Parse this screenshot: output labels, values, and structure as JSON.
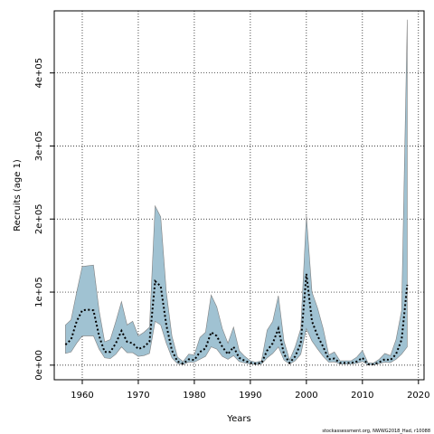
{
  "chart_data": {
    "type": "area",
    "xlabel": "Years",
    "ylabel": "Recruits (age 1)",
    "xlim": [
      1955,
      2021
    ],
    "ylim": [
      -20000,
      485000
    ],
    "x_ticks": [
      1960,
      1970,
      1980,
      1990,
      2000,
      2010,
      2020
    ],
    "y_ticks": [
      {
        "value": 0,
        "label": "0e+00"
      },
      {
        "value": 100000,
        "label": "1e+05"
      },
      {
        "value": 200000,
        "label": "2e+05"
      },
      {
        "value": 300000,
        "label": "3e+05"
      },
      {
        "value": 400000,
        "label": "4e+05"
      }
    ],
    "grid": true,
    "grid_style": "dotted",
    "band_color": "#a0c2d2",
    "band_edge_color": "#808080",
    "line_color": "#000000",
    "footnote": "stockassessment.org, NWWG2018_Had, r10088",
    "x": [
      1957,
      1958,
      1959,
      1960,
      1961,
      1962,
      1963,
      1964,
      1965,
      1966,
      1967,
      1968,
      1969,
      1970,
      1971,
      1972,
      1973,
      1974,
      1975,
      1976,
      1977,
      1978,
      1979,
      1980,
      1981,
      1982,
      1983,
      1984,
      1985,
      1986,
      1987,
      1988,
      1989,
      1990,
      1991,
      1992,
      1993,
      1994,
      1995,
      1996,
      1997,
      1998,
      1999,
      2000,
      2001,
      2002,
      2003,
      2004,
      2005,
      2006,
      2007,
      2008,
      2009,
      2010,
      2011,
      2012,
      2013,
      2014,
      2015,
      2016,
      2017,
      2018
    ],
    "series": [
      {
        "name": "estimate",
        "values": [
          28000,
          35000,
          60000,
          75000,
          76000,
          75000,
          40000,
          18000,
          18000,
          30000,
          47000,
          32000,
          30000,
          22000,
          25000,
          32000,
          115000,
          108000,
          55000,
          20000,
          5000,
          2000,
          8000,
          7000,
          18000,
          23000,
          45000,
          40000,
          25000,
          15000,
          25000,
          10000,
          6000,
          3000,
          2000,
          3000,
          20000,
          30000,
          50000,
          15000,
          3000,
          12000,
          30000,
          125000,
          60000,
          40000,
          25000,
          8000,
          9000,
          3000,
          3000,
          3000,
          5000,
          10000,
          1000,
          1000,
          4000,
          8000,
          7000,
          15000,
          35000,
          110000
        ]
      },
      {
        "name": "lower",
        "values": [
          16000,
          18000,
          30000,
          40000,
          40000,
          40000,
          22000,
          10000,
          9000,
          15000,
          25000,
          17000,
          17000,
          12000,
          13000,
          16000,
          60000,
          55000,
          30000,
          10000,
          2000,
          1000,
          4000,
          4000,
          8000,
          12000,
          25000,
          22000,
          12000,
          8000,
          13000,
          5000,
          3000,
          1500,
          1000,
          1500,
          10000,
          16000,
          25000,
          7000,
          1500,
          6000,
          15000,
          50000,
          33000,
          22000,
          12000,
          4000,
          4500,
          1500,
          1500,
          1500,
          2500,
          5000,
          500,
          500,
          2000,
          4000,
          3500,
          8000,
          15000,
          25000
        ]
      },
      {
        "name": "upper",
        "values": [
          55000,
          62000,
          100000,
          135000,
          136000,
          137000,
          75000,
          32000,
          35000,
          60000,
          87000,
          55000,
          60000,
          40000,
          45000,
          52000,
          218000,
          203000,
          100000,
          40000,
          11000,
          5000,
          15000,
          14000,
          38000,
          45000,
          96000,
          80000,
          50000,
          30000,
          52000,
          20000,
          12000,
          6000,
          4000,
          6000,
          48000,
          60000,
          95000,
          33000,
          7000,
          25000,
          50000,
          205000,
          100000,
          78000,
          50000,
          14000,
          18000,
          6000,
          6000,
          6000,
          11000,
          20000,
          3000,
          3000,
          8000,
          16000,
          13000,
          35000,
          75000,
          473000
        ]
      }
    ]
  }
}
